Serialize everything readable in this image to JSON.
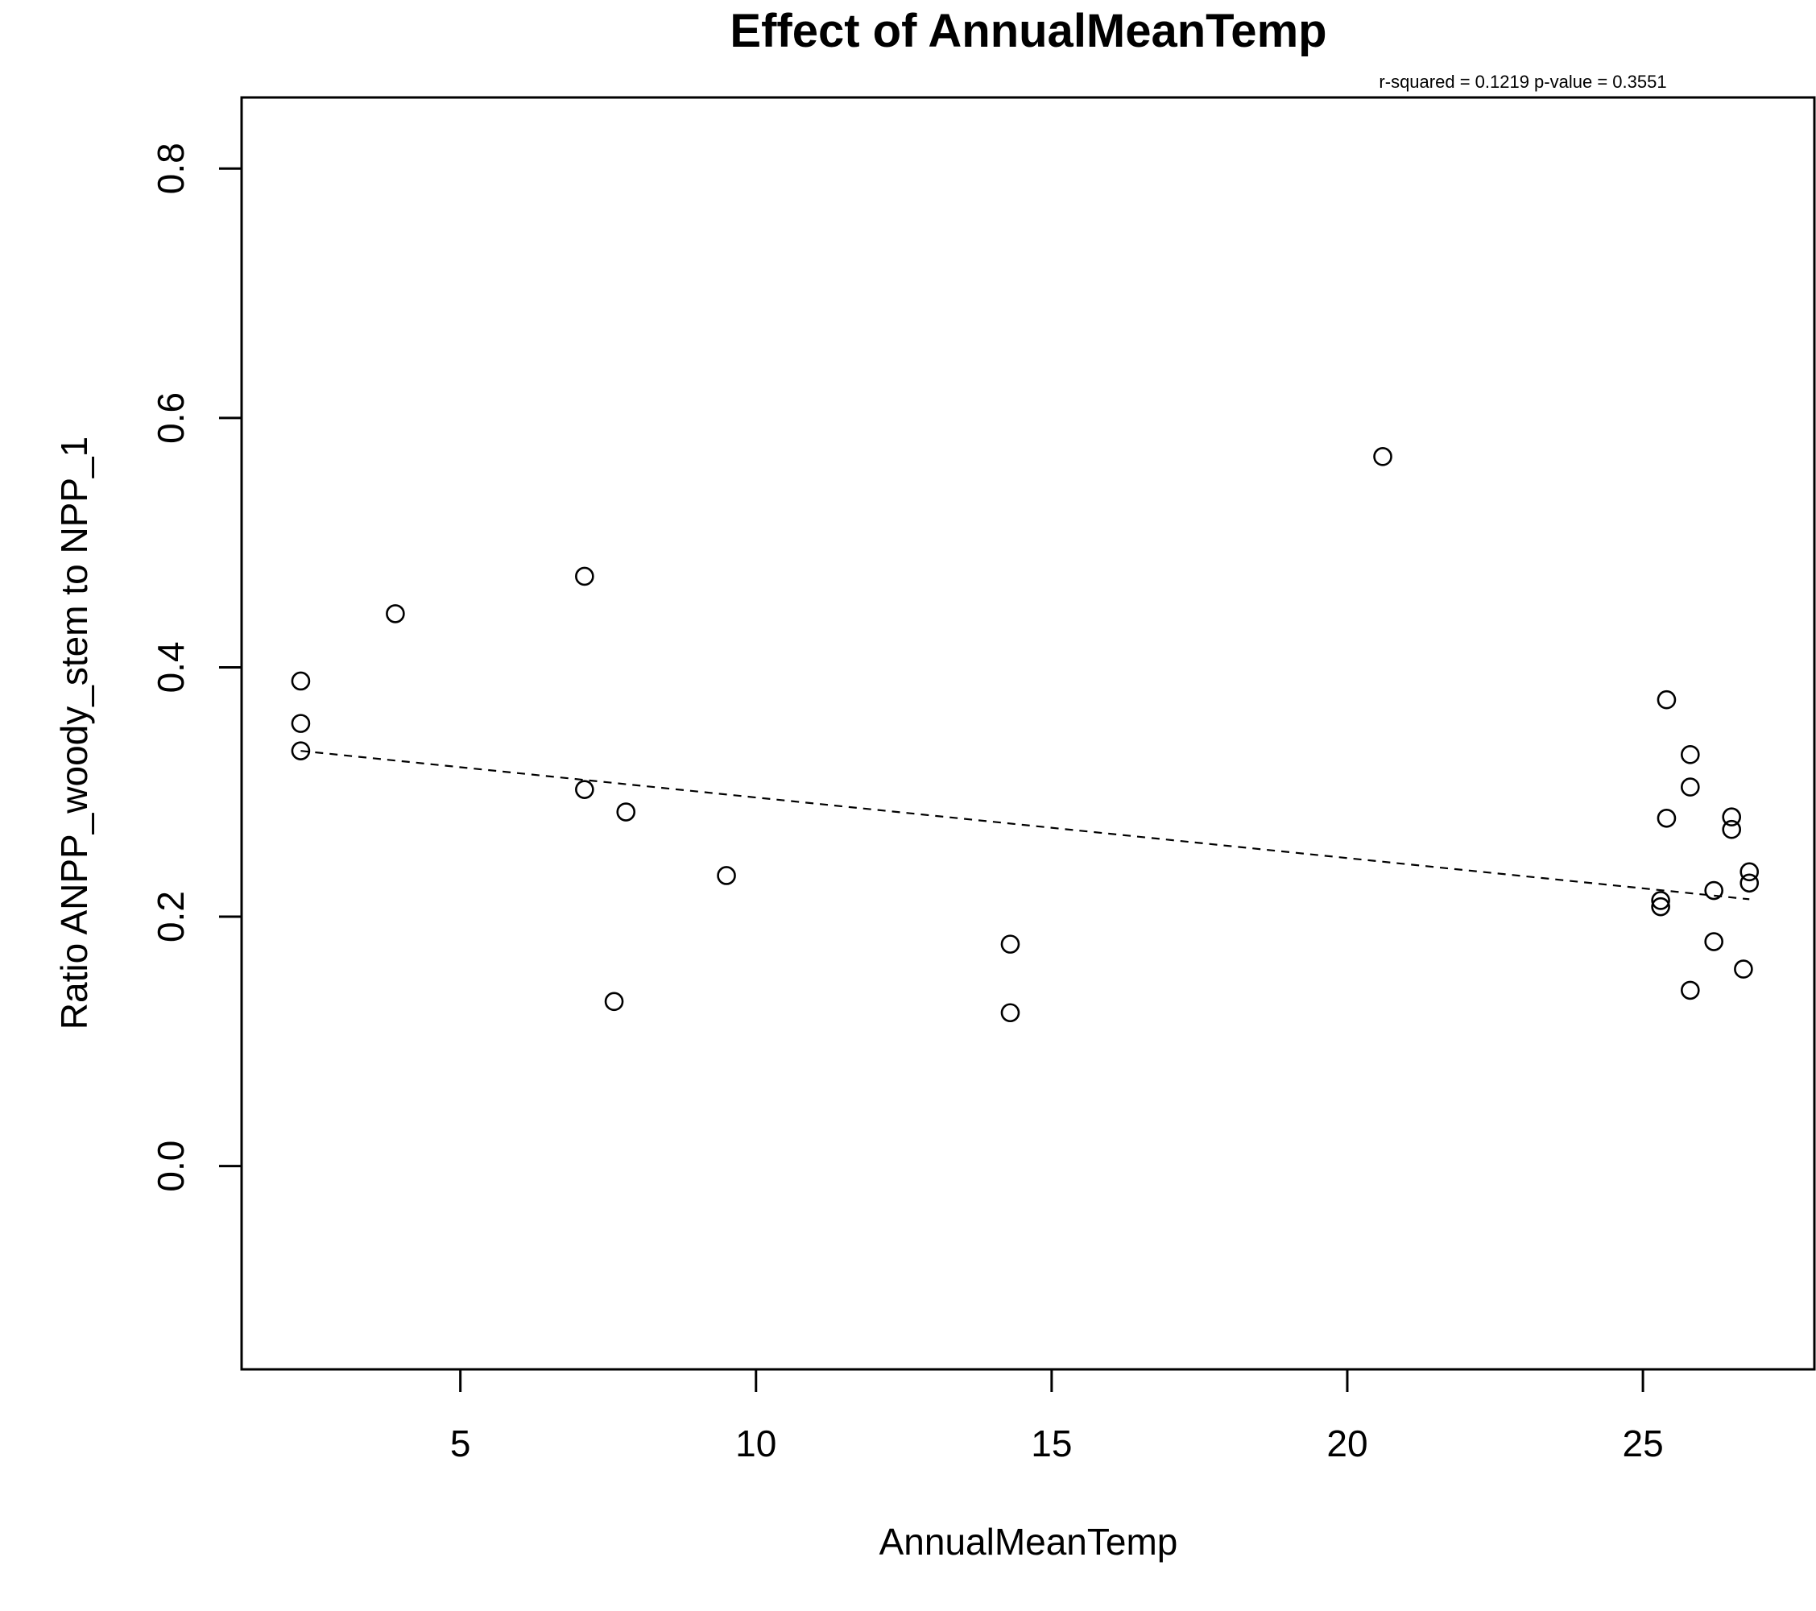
{
  "chart_data": {
    "type": "scatter",
    "title": "Effect of AnnualMeanTemp",
    "stats_text": "r-squared =  0.1219 p-value =  0.3551",
    "xlabel": "AnnualMeanTemp",
    "ylabel": "Ratio ANPP_woody_stem to NPP_1",
    "xlim": [
      1.3,
      27.9
    ],
    "ylim": [
      -0.163,
      0.857
    ],
    "x_ticks": [
      5,
      10,
      15,
      20,
      25
    ],
    "x_tick_labels": [
      "5",
      "10",
      "15",
      "20",
      "25"
    ],
    "y_ticks": [
      0.0,
      0.2,
      0.4,
      0.6,
      0.8
    ],
    "y_tick_labels": [
      "0.0",
      "0.2",
      "0.4",
      "0.6",
      "0.8"
    ],
    "grid": false,
    "legend": "none",
    "marker": "open-circle",
    "colors": {
      "points": "#000000",
      "trend": "#000000",
      "axes": "#000000",
      "background": "#ffffff"
    },
    "points": [
      {
        "x": 2.3,
        "y": 0.389
      },
      {
        "x": 2.3,
        "y": 0.355
      },
      {
        "x": 2.3,
        "y": 0.333
      },
      {
        "x": 3.9,
        "y": 0.443
      },
      {
        "x": 7.1,
        "y": 0.473
      },
      {
        "x": 7.1,
        "y": 0.302
      },
      {
        "x": 7.8,
        "y": 0.284
      },
      {
        "x": 7.6,
        "y": 0.132
      },
      {
        "x": 9.5,
        "y": 0.233
      },
      {
        "x": 14.3,
        "y": 0.178
      },
      {
        "x": 14.3,
        "y": 0.123
      },
      {
        "x": 20.6,
        "y": 0.569
      },
      {
        "x": 25.3,
        "y": 0.213
      },
      {
        "x": 25.3,
        "y": 0.208
      },
      {
        "x": 25.4,
        "y": 0.374
      },
      {
        "x": 25.4,
        "y": 0.279
      },
      {
        "x": 25.8,
        "y": 0.33
      },
      {
        "x": 25.8,
        "y": 0.304
      },
      {
        "x": 25.8,
        "y": 0.141
      },
      {
        "x": 26.2,
        "y": 0.221
      },
      {
        "x": 26.2,
        "y": 0.18
      },
      {
        "x": 26.5,
        "y": 0.28
      },
      {
        "x": 26.5,
        "y": 0.27
      },
      {
        "x": 26.7,
        "y": 0.158
      },
      {
        "x": 26.8,
        "y": 0.236
      },
      {
        "x": 26.8,
        "y": 0.227
      }
    ],
    "trend_line": {
      "style": "dashed",
      "x": [
        2.3,
        26.8
      ],
      "y": [
        0.333,
        0.214
      ]
    }
  }
}
